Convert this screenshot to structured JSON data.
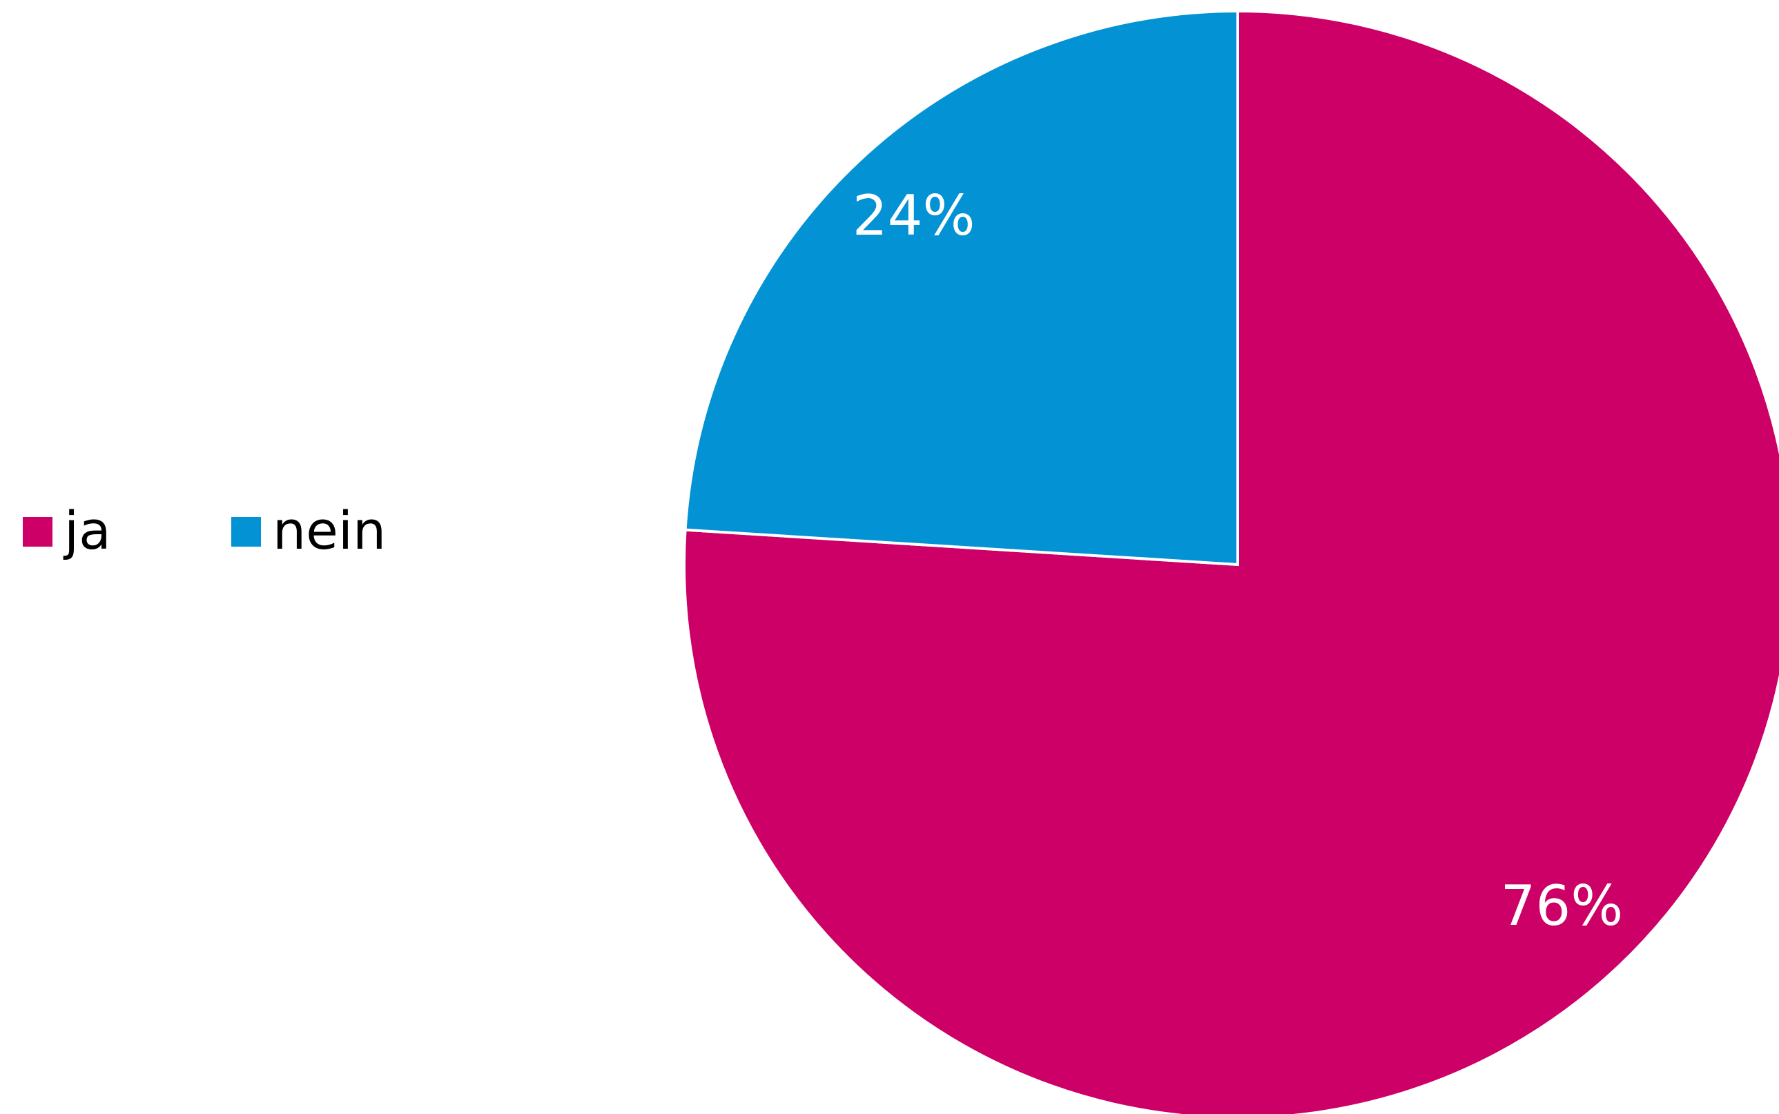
{
  "chart_data": {
    "type": "pie",
    "categories": [
      "ja",
      "nein"
    ],
    "values": [
      76,
      24
    ],
    "value_labels": [
      "76%",
      "24%"
    ],
    "colors": [
      "#cc0066",
      "#0393d4"
    ],
    "legend": "left"
  }
}
